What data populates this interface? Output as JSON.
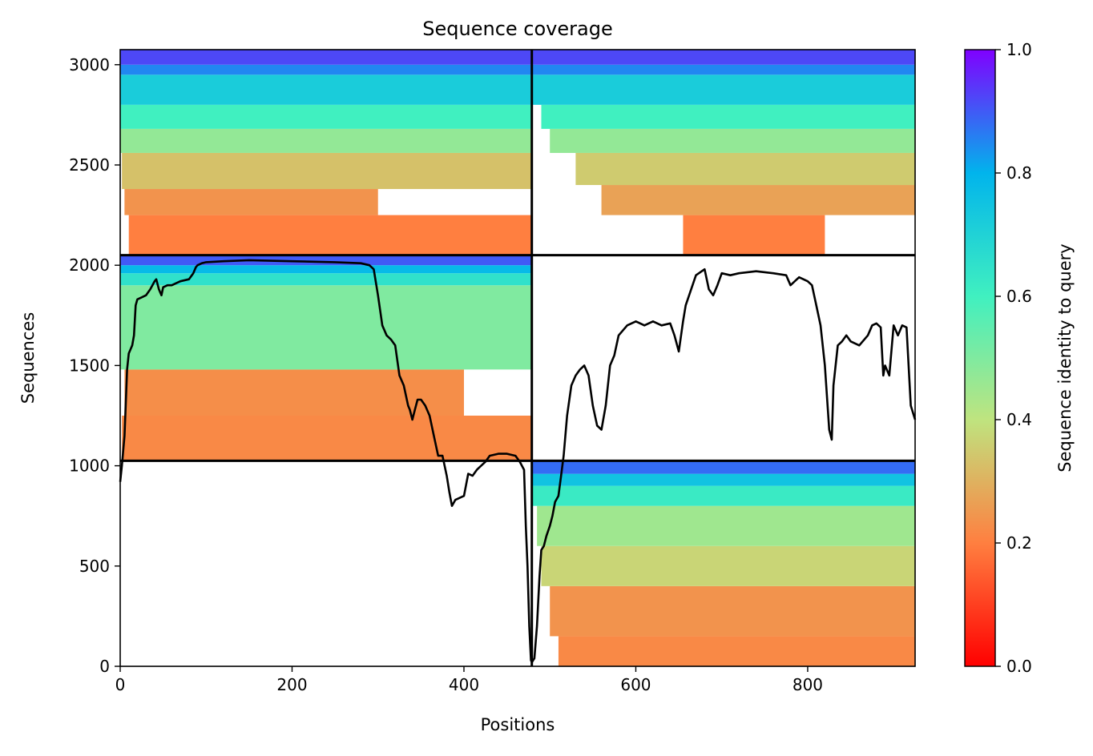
{
  "chart_data": {
    "type": "heatmap",
    "title": "Sequence coverage",
    "xlabel": "Positions",
    "ylabel": "Sequences",
    "xlim": [
      0,
      925
    ],
    "ylim": [
      0,
      3075
    ],
    "x_ticks": [
      0,
      200,
      400,
      600,
      800
    ],
    "y_ticks": [
      0,
      500,
      1000,
      1500,
      2000,
      2500,
      3000
    ],
    "grid": false,
    "colorbar": {
      "label": "Sequence identity to query",
      "range": [
        0.0,
        1.0
      ],
      "ticks": [
        "0.0",
        "0.2",
        "0.4",
        "0.6",
        "0.8",
        "1.0"
      ],
      "colormap": "rainbow_r",
      "stops": [
        "#ff0000",
        "#ff7f40",
        "#bfe47f",
        "#40f0c0",
        "#01b4ec",
        "#8000ff"
      ]
    },
    "chain_boundaries": {
      "x": [
        479
      ],
      "y": [
        1025,
        2050
      ]
    },
    "blocks": [
      {
        "name": "chain1-chain3",
        "x": [
          0,
          479
        ],
        "y": [
          2050,
          3075
        ],
        "bands": [
          {
            "y": [
              2050,
              2250
            ],
            "identity": 0.2,
            "x": [
              10,
              479
            ]
          },
          {
            "y": [
              2250,
              2380
            ],
            "identity": 0.24,
            "x": [
              5,
              300
            ]
          },
          {
            "y": [
              2380,
              2560
            ],
            "identity": 0.33,
            "x": [
              2,
              479
            ]
          },
          {
            "y": [
              2560,
              2680
            ],
            "identity": 0.47,
            "x": [
              0,
              479
            ]
          },
          {
            "y": [
              2680,
              2800
            ],
            "identity": 0.6,
            "x": [
              0,
              479
            ]
          },
          {
            "y": [
              2800,
              2950
            ],
            "identity": 0.72,
            "x": [
              0,
              479
            ]
          },
          {
            "y": [
              2950,
              3000
            ],
            "identity": 0.85,
            "x": [
              0,
              479
            ]
          },
          {
            "y": [
              3000,
              3075
            ],
            "identity": 0.92,
            "x": [
              0,
              479
            ]
          }
        ]
      },
      {
        "name": "chain2-chain3",
        "x": [
          479,
          925
        ],
        "y": [
          2050,
          3075
        ],
        "bands": [
          {
            "y": [
              2050,
              2250
            ],
            "identity": 0.2,
            "x": [
              655,
              820
            ]
          },
          {
            "y": [
              2250,
              2400
            ],
            "identity": 0.27,
            "x": [
              560,
              925
            ]
          },
          {
            "y": [
              2400,
              2560
            ],
            "identity": 0.35,
            "x": [
              530,
              925
            ]
          },
          {
            "y": [
              2560,
              2680
            ],
            "identity": 0.47,
            "x": [
              500,
              925
            ]
          },
          {
            "y": [
              2680,
              2800
            ],
            "identity": 0.6,
            "x": [
              490,
              925
            ]
          },
          {
            "y": [
              2800,
              2950
            ],
            "identity": 0.72,
            "x": [
              479,
              925
            ]
          },
          {
            "y": [
              2950,
              3000
            ],
            "identity": 0.85,
            "x": [
              479,
              925
            ]
          },
          {
            "y": [
              3000,
              3075
            ],
            "identity": 0.92,
            "x": [
              479,
              925
            ]
          }
        ]
      },
      {
        "name": "chain1-chain2",
        "x": [
          0,
          479
        ],
        "y": [
          1025,
          2050
        ],
        "bands": [
          {
            "y": [
              1025,
              1250
            ],
            "identity": 0.22,
            "x": [
              2,
              479
            ]
          },
          {
            "y": [
              1250,
              1480
            ],
            "identity": 0.23,
            "x": [
              5,
              400
            ]
          },
          {
            "y": [
              1480,
              1900
            ],
            "identity": 0.5,
            "x": [
              0,
              479
            ]
          },
          {
            "y": [
              1900,
              1960
            ],
            "identity": 0.65,
            "x": [
              0,
              479
            ]
          },
          {
            "y": [
              1960,
              2000
            ],
            "identity": 0.78,
            "x": [
              0,
              479
            ]
          },
          {
            "y": [
              2000,
              2050
            ],
            "identity": 0.9,
            "x": [
              0,
              479
            ]
          }
        ]
      },
      {
        "name": "chain2-chain1",
        "x": [
          479,
          925
        ],
        "y": [
          0,
          1025
        ],
        "bands": [
          {
            "y": [
              0,
              150
            ],
            "identity": 0.22,
            "x": [
              510,
              925
            ]
          },
          {
            "y": [
              150,
              400
            ],
            "identity": 0.24,
            "x": [
              500,
              925
            ]
          },
          {
            "y": [
              400,
              600
            ],
            "identity": 0.37,
            "x": [
              490,
              925
            ]
          },
          {
            "y": [
              600,
              800
            ],
            "identity": 0.45,
            "x": [
              485,
              925
            ]
          },
          {
            "y": [
              800,
              900
            ],
            "identity": 0.62,
            "x": [
              479,
              925
            ]
          },
          {
            "y": [
              900,
              960
            ],
            "identity": 0.75,
            "x": [
              479,
              925
            ]
          },
          {
            "y": [
              960,
              1025
            ],
            "identity": 0.88,
            "x": [
              479,
              925
            ]
          }
        ]
      }
    ],
    "coverage_line": {
      "x": [
        0,
        2,
        5,
        8,
        10,
        14,
        16,
        18,
        20,
        25,
        30,
        35,
        40,
        42,
        45,
        48,
        50,
        55,
        60,
        65,
        70,
        80,
        85,
        88,
        90,
        95,
        100,
        120,
        150,
        200,
        250,
        280,
        290,
        295,
        300,
        305,
        310,
        315,
        320,
        325,
        330,
        335,
        337,
        340,
        343,
        346,
        350,
        355,
        360,
        365,
        370,
        375,
        380,
        383,
        386,
        390,
        395,
        400,
        405,
        410,
        415,
        420,
        425,
        430,
        440,
        450,
        460,
        465,
        470,
        472,
        474,
        476,
        478,
        479,
        482,
        485,
        488,
        490,
        493,
        496,
        500,
        503,
        506,
        510,
        513,
        516,
        520,
        525,
        530,
        535,
        540,
        545,
        550,
        555,
        560,
        565,
        570,
        575,
        580,
        590,
        600,
        610,
        620,
        630,
        640,
        645,
        650,
        655,
        658,
        662,
        670,
        680,
        685,
        690,
        695,
        700,
        710,
        720,
        740,
        760,
        775,
        780,
        790,
        800,
        805,
        810,
        815,
        820,
        825,
        828,
        830,
        835,
        840,
        845,
        850,
        860,
        870,
        875,
        880,
        885,
        888,
        890,
        895,
        900,
        905,
        910,
        915,
        920,
        925
      ],
      "y": [
        920,
        1000,
        1150,
        1480,
        1560,
        1600,
        1650,
        1800,
        1830,
        1840,
        1850,
        1880,
        1920,
        1930,
        1880,
        1850,
        1890,
        1900,
        1900,
        1910,
        1920,
        1930,
        1960,
        1990,
        2000,
        2010,
        2015,
        2020,
        2025,
        2020,
        2015,
        2010,
        2000,
        1980,
        1850,
        1700,
        1650,
        1630,
        1600,
        1450,
        1400,
        1300,
        1280,
        1230,
        1280,
        1330,
        1330,
        1300,
        1250,
        1150,
        1050,
        1050,
        950,
        870,
        800,
        830,
        840,
        850,
        960,
        950,
        980,
        1000,
        1020,
        1050,
        1060,
        1060,
        1050,
        1020,
        980,
        700,
        500,
        200,
        30,
        20,
        40,
        200,
        450,
        580,
        600,
        650,
        700,
        750,
        820,
        850,
        950,
        1050,
        1250,
        1400,
        1450,
        1480,
        1500,
        1450,
        1300,
        1200,
        1180,
        1300,
        1500,
        1550,
        1650,
        1700,
        1720,
        1700,
        1720,
        1700,
        1710,
        1650,
        1570,
        1720,
        1800,
        1850,
        1950,
        1980,
        1880,
        1850,
        1900,
        1960,
        1950,
        1960,
        1970,
        1960,
        1950,
        1900,
        1940,
        1920,
        1900,
        1800,
        1700,
        1500,
        1180,
        1130,
        1400,
        1600,
        1620,
        1650,
        1620,
        1600,
        1650,
        1700,
        1710,
        1690,
        1450,
        1500,
        1450,
        1700,
        1650,
        1700,
        1690,
        1300,
        1230
      ]
    }
  }
}
